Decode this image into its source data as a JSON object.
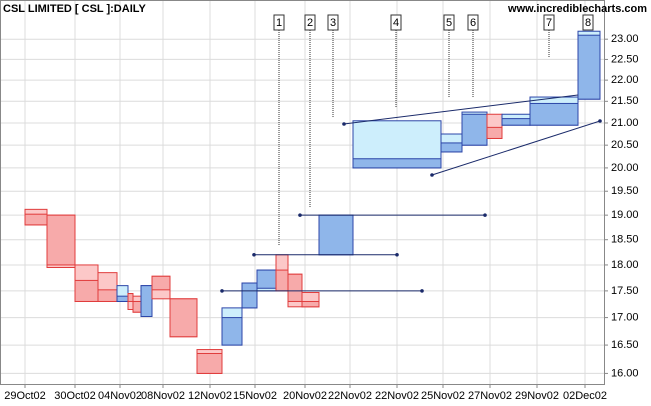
{
  "chart_data": {
    "type": "candlevolume",
    "title": "CSL LIMITED [ CSL ]:DAILY",
    "source": "www.incrediblecharts.com",
    "log_scale": true,
    "grid": true,
    "up_color": "#2c46a8",
    "down_color": "#e03c3c",
    "xlim": [
      0,
      605
    ],
    "xticks": [
      {
        "value": 25,
        "label": "29Oct02"
      },
      {
        "value": 75,
        "label": "30Oct02"
      },
      {
        "value": 120,
        "label": "04Nov02"
      },
      {
        "value": 163,
        "label": "08Nov02"
      },
      {
        "value": 210,
        "label": "12Nov02"
      },
      {
        "value": 255,
        "label": "15Nov02"
      },
      {
        "value": 305,
        "label": "20Nov02"
      },
      {
        "value": 350,
        "label": "22Nov02"
      },
      {
        "value": 397,
        "label": "22Nov02"
      },
      {
        "value": 443,
        "label": "25Nov02"
      },
      {
        "value": 490,
        "label": "27Nov02"
      },
      {
        "value": 537,
        "label": "29Nov02"
      },
      {
        "value": 585,
        "label": "02Dec02"
      }
    ],
    "ylim": [
      15.8,
      24
    ],
    "yticks": [
      {
        "value": 16,
        "label": "16.00"
      },
      {
        "value": 16.5,
        "label": "16.50"
      },
      {
        "value": 17,
        "label": "17.00"
      },
      {
        "value": 17.5,
        "label": "17.50"
      },
      {
        "value": 18,
        "label": "18.00"
      },
      {
        "value": 18.5,
        "label": "18.50"
      },
      {
        "value": 19,
        "label": "19.00"
      },
      {
        "value": 19.5,
        "label": "19.50"
      },
      {
        "value": 20,
        "label": "20.00"
      },
      {
        "value": 20.5,
        "label": "20.50"
      },
      {
        "value": 21,
        "label": "21.00"
      },
      {
        "value": 21.5,
        "label": "21.50"
      },
      {
        "value": 22,
        "label": "22.00"
      },
      {
        "value": 22.5,
        "label": "22.50"
      },
      {
        "value": 23,
        "label": "23.00"
      }
    ],
    "bars": {
      "x": [
        25,
        47,
        75,
        98,
        117,
        128,
        133,
        141,
        152,
        170,
        197,
        222,
        242,
        257,
        276,
        288,
        302,
        319,
        353,
        441,
        462,
        487,
        502,
        530,
        578
      ],
      "volume": [
        22,
        28,
        23,
        19,
        11,
        5,
        8,
        11,
        18,
        27,
        25,
        20,
        15,
        19,
        12,
        14,
        17,
        34,
        88,
        21,
        25,
        15,
        28,
        48,
        22
      ],
      "open": [
        19.02,
        19.0,
        17.7,
        17.52,
        17.3,
        17.45,
        17.3,
        17.02,
        17.78,
        17.35,
        16.35,
        16.5,
        17.18,
        17.55,
        17.9,
        17.82,
        17.3,
        18.2,
        20.0,
        20.35,
        20.5,
        20.9,
        20.95,
        20.95,
        21.55
      ],
      "high": [
        19.12,
        19.0,
        18.0,
        17.85,
        17.6,
        17.45,
        17.4,
        17.6,
        17.78,
        17.35,
        16.42,
        17.18,
        17.65,
        17.9,
        18.2,
        17.82,
        17.47,
        19.0,
        21.05,
        20.75,
        21.25,
        21.2,
        21.2,
        21.6,
        23.2
      ],
      "low": [
        18.8,
        17.95,
        17.3,
        17.3,
        17.3,
        17.15,
        17.1,
        17.02,
        17.35,
        16.65,
        16.0,
        16.5,
        17.18,
        17.5,
        17.5,
        17.2,
        17.2,
        18.2,
        20.0,
        20.35,
        20.5,
        20.65,
        20.95,
        20.95,
        21.55
      ],
      "close": [
        18.8,
        18.0,
        17.3,
        17.3,
        17.4,
        17.3,
        17.1,
        17.6,
        17.52,
        16.65,
        16.0,
        17.0,
        17.65,
        17.9,
        17.5,
        17.3,
        17.2,
        19.0,
        20.2,
        20.55,
        21.2,
        20.65,
        21.1,
        21.45,
        23.1
      ]
    },
    "levels": [
      17.5,
      18.2,
      19.0
    ],
    "annotations": [
      "1",
      "2",
      "3",
      "4",
      "5",
      "6",
      "7",
      "8"
    ]
  }
}
